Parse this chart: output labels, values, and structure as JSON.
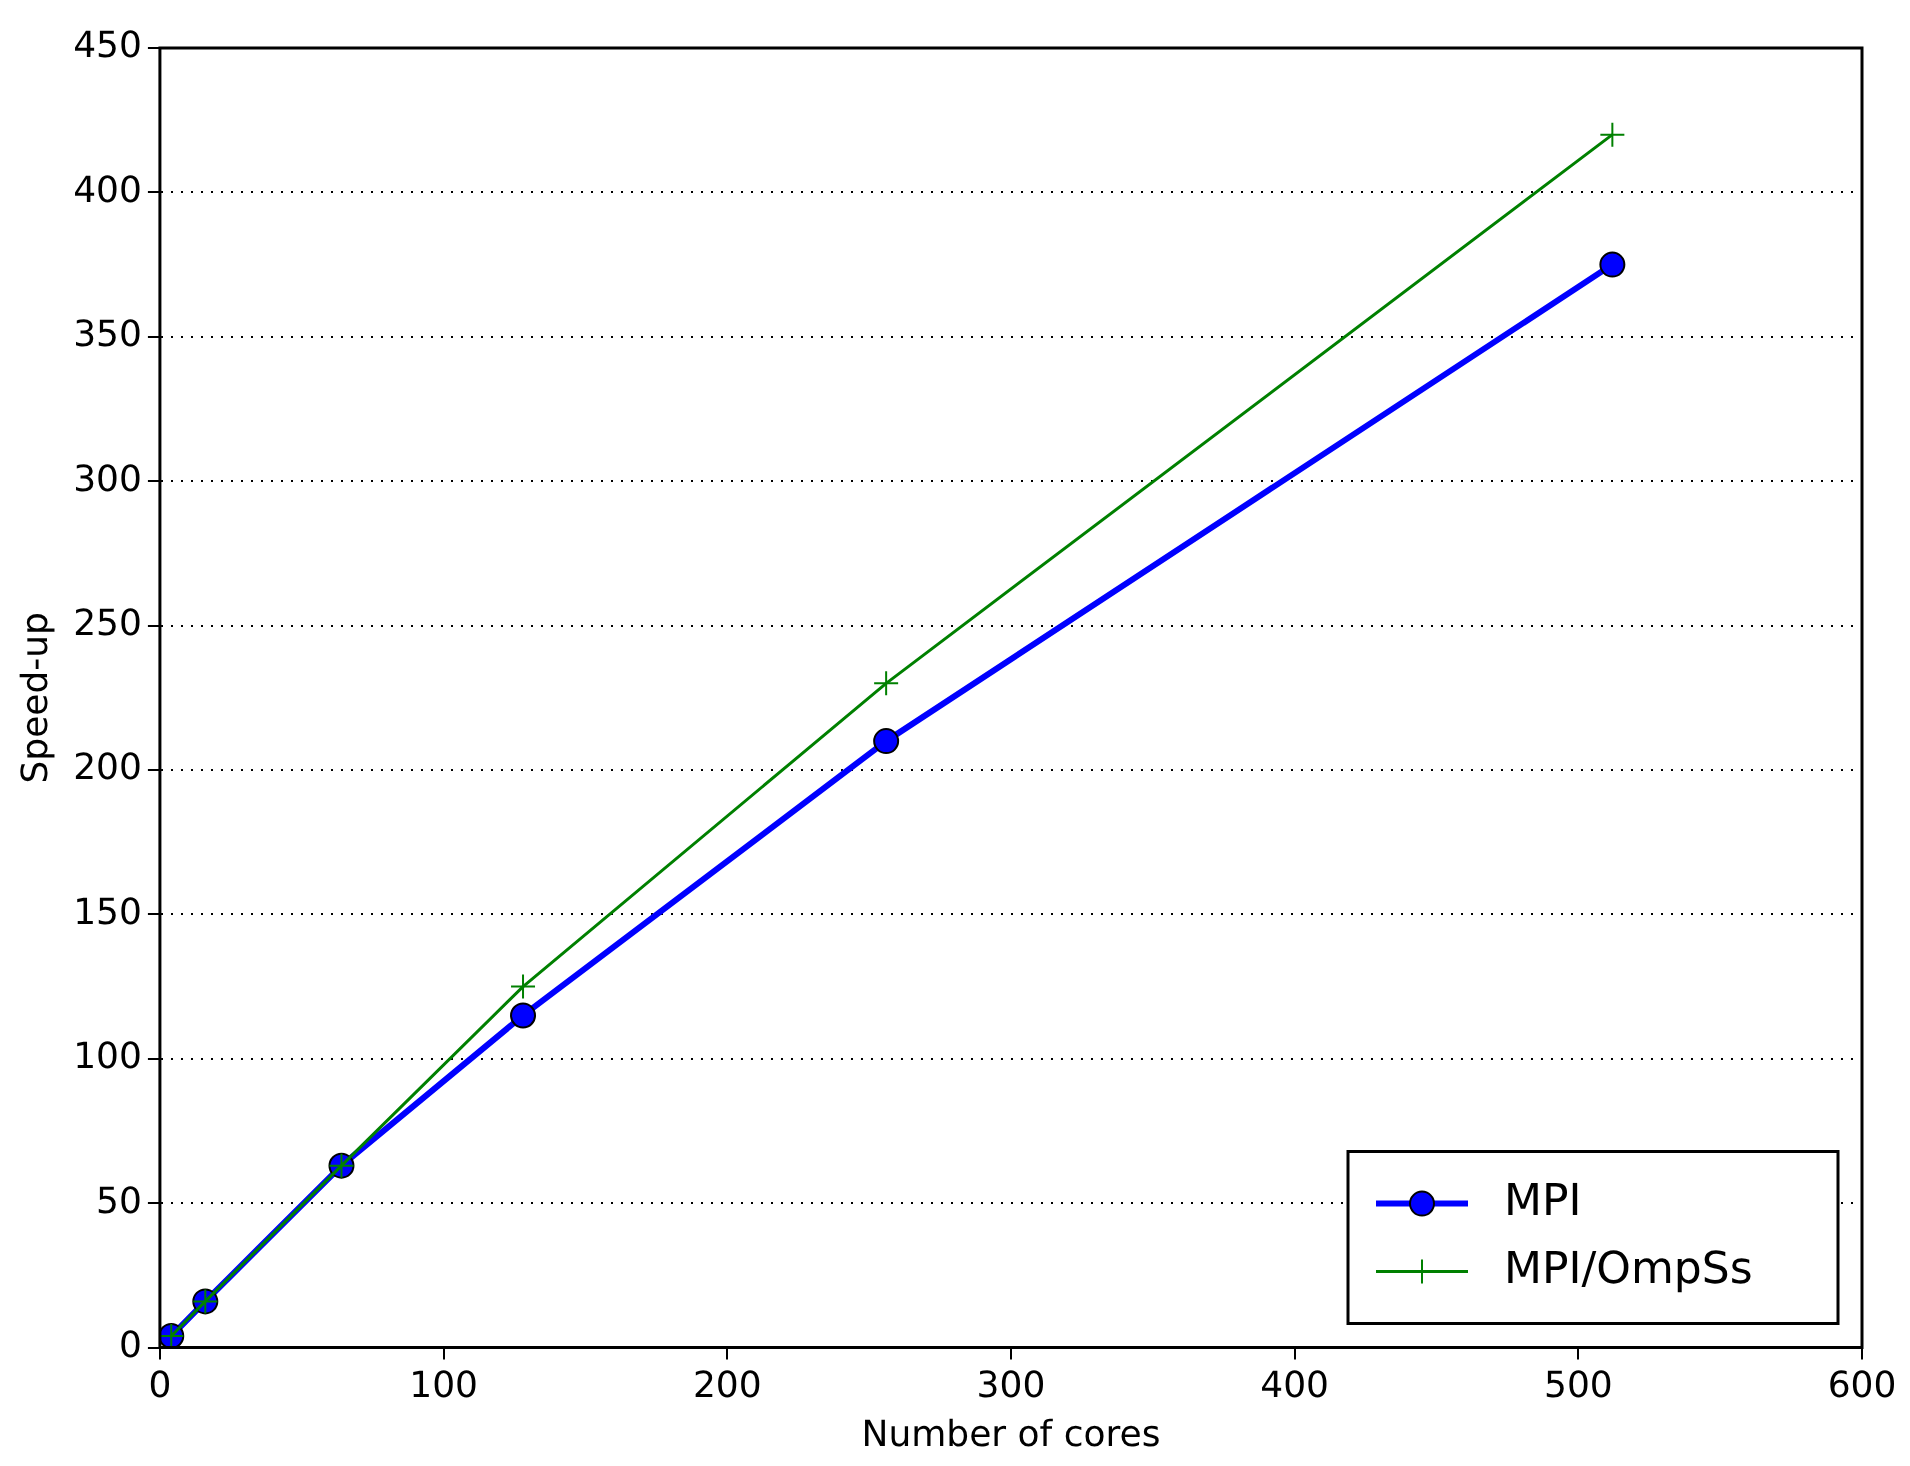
{
  "chart_data": {
    "type": "line",
    "xlabel": "Number of cores",
    "ylabel": "Speed-up",
    "xlim": [
      0,
      600
    ],
    "xticks": [
      0,
      100,
      200,
      300,
      400,
      500,
      600
    ],
    "ylim": [
      0,
      450
    ],
    "yticks": [
      0,
      50,
      100,
      150,
      200,
      250,
      300,
      350,
      400,
      450
    ],
    "grid": "y",
    "legend": "bottom right",
    "series": [
      {
        "name": "MPI",
        "color": "#0000ff",
        "marker": "circle",
        "x": [
          4,
          16,
          64,
          128,
          256,
          512
        ],
        "values": [
          4,
          16,
          63,
          115,
          210,
          375
        ]
      },
      {
        "name": "MPI/OmpSs",
        "color": "#008000",
        "marker": "cross",
        "x": [
          4,
          16,
          64,
          128,
          256,
          512
        ],
        "values": [
          4,
          16,
          63,
          125,
          230,
          420
        ]
      }
    ]
  }
}
